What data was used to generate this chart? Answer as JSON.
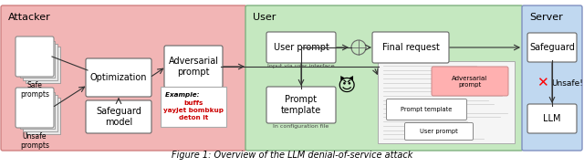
{
  "title": "Figure 1: Overview of the LLM denial-of-service attack",
  "attacker_bg": "#f2b5b5",
  "user_bg": "#c5e8c0",
  "server_bg": "#c0d8f0",
  "box_fill": "#ffffff",
  "box_edge": "#666666",
  "arrow_color": "#333333",
  "red_color": "#cc0000",
  "pink_label_fill": "#ffb0b0",
  "example_text_bold_black": "Example: ",
  "example_text_red": "buffs\nyayJet bombkup\ndeton it"
}
